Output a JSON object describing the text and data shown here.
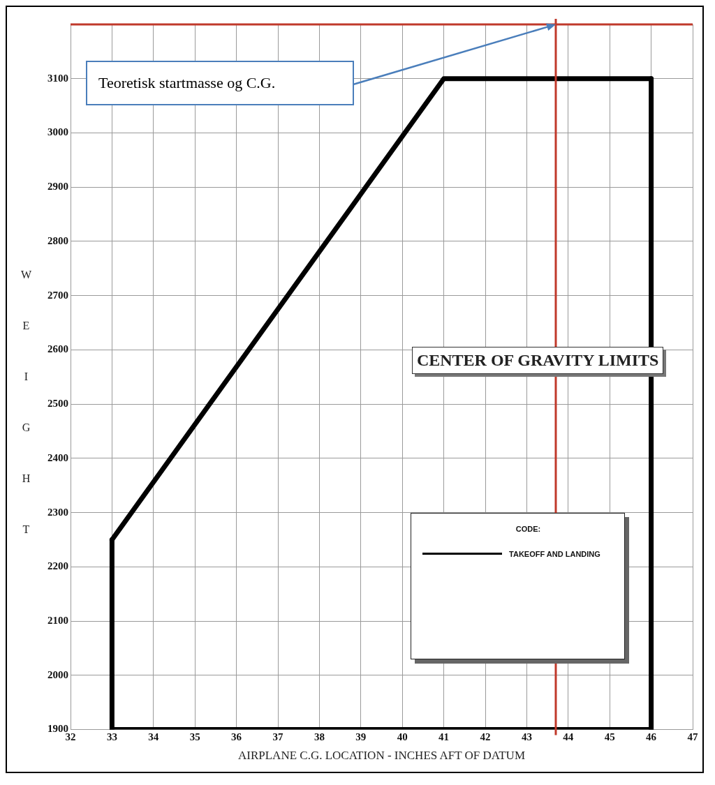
{
  "chart_data": {
    "type": "line",
    "title": "CENTER OF GRAVITY LIMITS",
    "xlabel": "AIRPLANE C.G. LOCATION - INCHES AFT OF DATUM",
    "ylabel": "WEIGHT",
    "legend_title": "CODE:",
    "series": [
      {
        "name": "TAKEOFF AND LANDING",
        "color": "#000000",
        "x": [
          33,
          41,
          46
        ],
        "values": [
          2250,
          3100,
          3100
        ]
      },
      {
        "color": "#000000",
        "x": [
          33,
          33
        ],
        "values": [
          1900,
          2250
        ]
      },
      {
        "color": "#000000",
        "x": [
          46,
          46
        ],
        "values": [
          3100,
          1900
        ]
      },
      {
        "color": "#000000",
        "x": [
          33,
          46
        ],
        "values": [
          1900,
          1900
        ]
      }
    ],
    "xlim": [
      32,
      47
    ],
    "xticks": [
      32,
      33,
      34,
      35,
      36,
      37,
      38,
      39,
      40,
      41,
      42,
      43,
      44,
      45,
      46,
      47
    ],
    "ylim": [
      1900,
      3200
    ],
    "yticks": [
      1900,
      2000,
      2100,
      2200,
      2300,
      2400,
      2500,
      2600,
      2700,
      2800,
      2900,
      3000,
      3100,
      {
        "value": 3200,
        "label": null
      }
    ],
    "grid": true,
    "legend": "bottom right",
    "marker": "none",
    "line_style": "solid",
    "ref_lines": [
      {
        "axis": "y",
        "value": 3200,
        "color": "#c0392b"
      },
      {
        "axis": "x",
        "value": 43.7,
        "color": "#c0392b"
      }
    ],
    "annotations": [
      "Teoretisk startmasse og C.G."
    ]
  }
}
